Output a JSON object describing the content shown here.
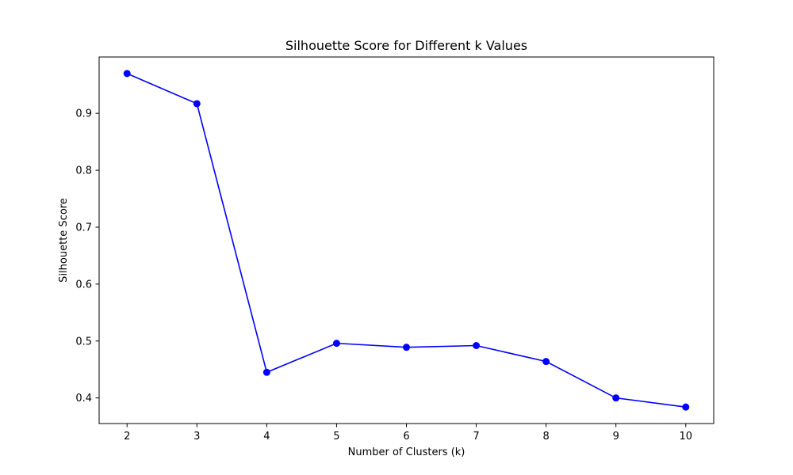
{
  "chart_data": {
    "type": "line",
    "title": "Silhouette Score for Different k Values",
    "xlabel": "Number of Clusters (k)",
    "ylabel": "Silhouette Score",
    "x": [
      2,
      3,
      4,
      5,
      6,
      7,
      8,
      9,
      10
    ],
    "series": [
      {
        "values": [
          0.97,
          0.917,
          0.445,
          0.496,
          0.489,
          0.492,
          0.464,
          0.4,
          0.384
        ],
        "color": "#0000ff",
        "marker": "circle"
      }
    ],
    "x_ticks": [
      2,
      3,
      4,
      5,
      6,
      7,
      8,
      9,
      10
    ],
    "y_ticks": [
      0.4,
      0.5,
      0.6,
      0.7,
      0.8,
      0.9
    ],
    "xlim": [
      1.6,
      10.4
    ],
    "ylim": [
      0.355,
      0.999
    ],
    "grid": false,
    "legend": "none"
  }
}
